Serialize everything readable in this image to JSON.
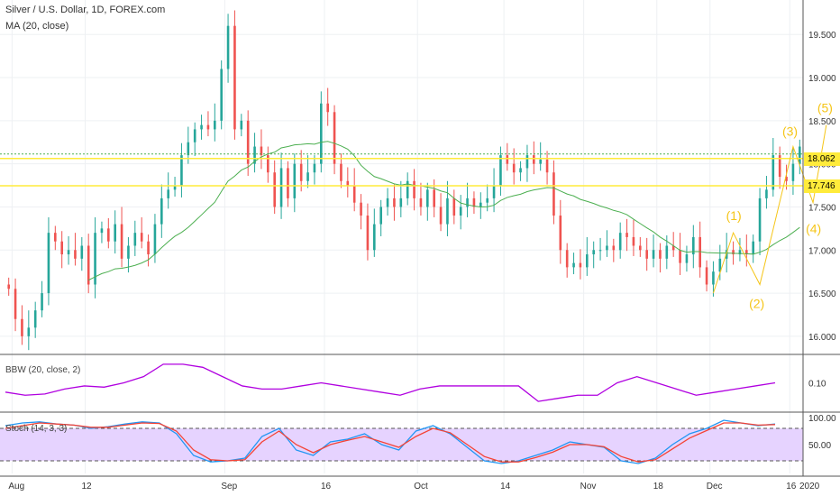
{
  "header": {
    "symbol_line": "Silver / U.S. Dollar, 1D, FOREX.com",
    "indicator_line": "MA (20, close)"
  },
  "panes": {
    "bbw_title": "BBW (20, close, 2)",
    "stoch_title": "Stoch (14, 3, 3)"
  },
  "price_tags": {
    "upper": "18.062",
    "lower": "17.746"
  },
  "wave_labels": [
    "(1)",
    "(2)",
    "(3)",
    "(4)",
    "(5)"
  ],
  "colors": {
    "up": "#26a69a",
    "down": "#ef5350",
    "ma": "#4caf50",
    "level": "#ffeb3b",
    "wave": "#f5c518",
    "bbw": "#b000e0",
    "stoch_k": "#2196f3",
    "stoch_d": "#f44336",
    "stoch_band": "#e6d3ff"
  },
  "chart_data": [
    {
      "type": "candlestick",
      "title": "Silver / U.S. Dollar, 1D, FOREX.com",
      "y_ticks": [
        "19.500",
        "19.000",
        "18.500",
        "18.000",
        "17.500",
        "17.000",
        "16.500",
        "16.000"
      ],
      "ylim": [
        15.8,
        19.9
      ],
      "x_ticks": [
        "Aug",
        "12",
        "Sep",
        "16",
        "Oct",
        "14",
        "Nov",
        "18",
        "Dec",
        "16",
        "2020"
      ],
      "closes": [
        16.55,
        16.2,
        16.0,
        16.1,
        16.3,
        16.5,
        17.2,
        17.1,
        16.95,
        17.0,
        16.9,
        17.05,
        16.6,
        17.2,
        17.25,
        17.1,
        17.3,
        16.9,
        17.05,
        17.2,
        17.1,
        16.95,
        17.3,
        17.6,
        17.7,
        17.75,
        18.1,
        18.25,
        18.4,
        18.45,
        18.4,
        18.5,
        19.1,
        19.6,
        18.4,
        18.5,
        18.0,
        18.2,
        18.1,
        17.9,
        17.5,
        17.95,
        17.6,
        18.0,
        17.8,
        17.9,
        18.0,
        18.7,
        18.6,
        18.0,
        17.8,
        17.75,
        17.55,
        17.4,
        17.0,
        17.3,
        17.5,
        17.6,
        17.5,
        17.6,
        17.8,
        17.6,
        17.5,
        17.7,
        17.5,
        17.3,
        17.6,
        17.4,
        17.5,
        17.6,
        17.5,
        17.55,
        17.6,
        17.75,
        18.1,
        18.0,
        17.9,
        17.95,
        18.1,
        18.0,
        18.05,
        17.9,
        17.4,
        17.0,
        16.8,
        16.85,
        16.8,
        16.95,
        17.0,
        17.0,
        17.05,
        17.0,
        17.2,
        17.15,
        17.05,
        17.0,
        16.9,
        17.0,
        16.9,
        17.05,
        17.0,
        16.85,
        16.95,
        17.15,
        16.8,
        16.6,
        16.75,
        16.9,
        17.0,
        16.95,
        17.0,
        16.95,
        17.1,
        17.6,
        17.7,
        18.1,
        17.85,
        17.8,
        18.0,
        18.2
      ],
      "ma_labels": [
        "(20, close)"
      ],
      "horizontal_levels": [
        18.062,
        17.746
      ],
      "wave_points": [
        {
          "label": "(1)",
          "x": 109,
          "y": 17.2
        },
        {
          "label": "(2)",
          "x": 113,
          "y": 16.6
        },
        {
          "label": "(3)",
          "x": 118,
          "y": 18.2
        },
        {
          "label": "(4)",
          "x": 121,
          "y": 17.55
        },
        {
          "label": "(5)",
          "x": 123,
          "y": 18.45
        }
      ]
    },
    {
      "type": "line",
      "title": "BBW (20, close, 2)",
      "y_ticks": [
        "0.10"
      ],
      "series": [
        {
          "name": "BBW",
          "values": [
            0.085,
            0.08,
            0.082,
            0.09,
            0.095,
            0.093,
            0.1,
            0.11,
            0.13,
            0.13,
            0.125,
            0.11,
            0.095,
            0.09,
            0.09,
            0.095,
            0.1,
            0.095,
            0.09,
            0.085,
            0.08,
            0.09,
            0.095,
            0.095,
            0.095,
            0.095,
            0.095,
            0.07,
            0.075,
            0.08,
            0.08,
            0.1,
            0.11,
            0.1,
            0.09,
            0.08,
            0.085,
            0.09,
            0.095,
            0.1
          ]
        }
      ]
    },
    {
      "type": "line",
      "title": "Stoch (14, 3, 3)",
      "y_ticks": [
        "100.00",
        "50.00"
      ],
      "bands": [
        80,
        20
      ],
      "series": [
        {
          "name": "%K",
          "values": [
            85,
            90,
            92,
            88,
            86,
            80,
            83,
            88,
            92,
            90,
            70,
            30,
            18,
            20,
            25,
            65,
            80,
            40,
            30,
            55,
            60,
            70,
            50,
            40,
            75,
            85,
            70,
            45,
            20,
            15,
            20,
            30,
            40,
            55,
            50,
            45,
            20,
            15,
            25,
            50,
            70,
            80,
            95,
            90,
            85,
            88
          ]
        },
        {
          "name": "%D",
          "values": [
            80,
            85,
            90,
            88,
            86,
            82,
            82,
            86,
            90,
            89,
            75,
            40,
            22,
            20,
            22,
            55,
            75,
            50,
            35,
            50,
            58,
            65,
            55,
            45,
            65,
            80,
            72,
            50,
            28,
            18,
            18,
            26,
            36,
            50,
            50,
            46,
            28,
            18,
            22,
            42,
            62,
            76,
            90,
            90,
            86,
            87
          ]
        }
      ]
    }
  ]
}
